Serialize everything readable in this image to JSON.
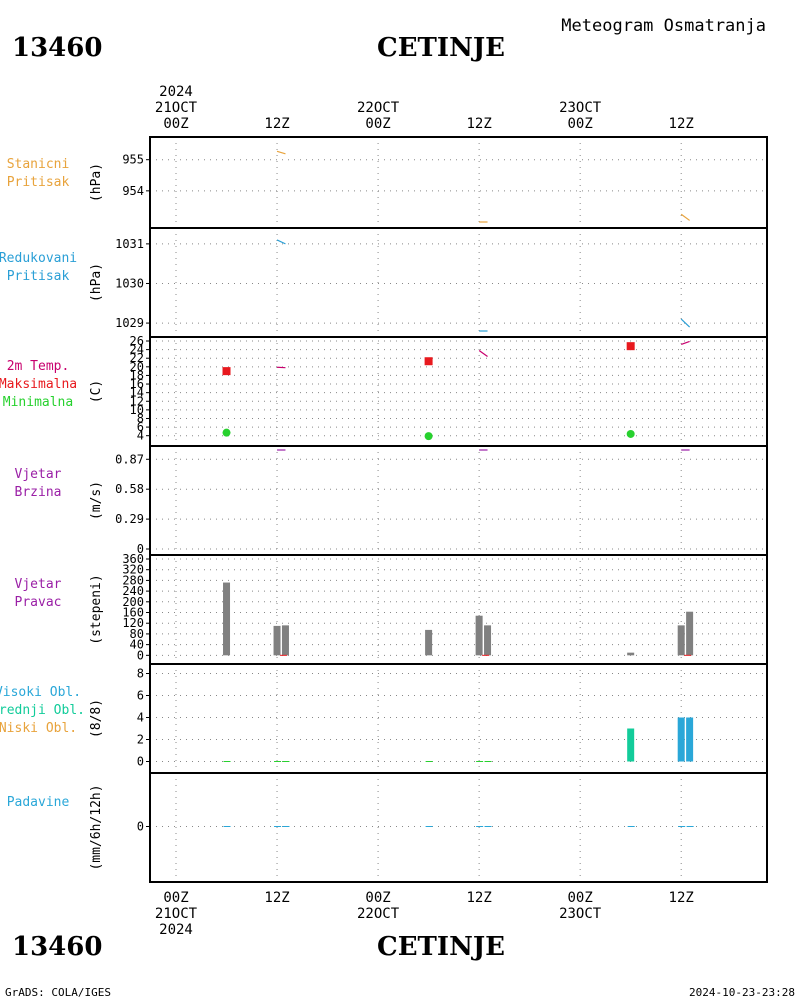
{
  "header": {
    "station_id": "13460",
    "station_name": "CETINJE",
    "product": "Meteogram Osmatranja"
  },
  "footer": {
    "credit": "GrADS: COLA/IGES",
    "timestamp": "2024-10-23-23:28"
  },
  "top_axis": {
    "labels": [
      {
        "lines": [
          "2024",
          "21OCT",
          "00Z"
        ],
        "hour": 0
      },
      {
        "lines": [
          "12Z"
        ],
        "hour": 12
      },
      {
        "lines": [
          "22OCT",
          "00Z"
        ],
        "hour": 24
      },
      {
        "lines": [
          "12Z"
        ],
        "hour": 36
      },
      {
        "lines": [
          "23OCT",
          "00Z"
        ],
        "hour": 48
      },
      {
        "lines": [
          "12Z"
        ],
        "hour": 60
      }
    ]
  },
  "bottom_axis": {
    "labels": [
      {
        "lines": [
          "00Z",
          "21OCT",
          "2024"
        ],
        "hour": 0
      },
      {
        "lines": [
          "12Z"
        ],
        "hour": 12
      },
      {
        "lines": [
          "00Z",
          "22OCT"
        ],
        "hour": 24
      },
      {
        "lines": [
          "12Z"
        ],
        "hour": 36
      },
      {
        "lines": [
          "00Z",
          "23OCT"
        ],
        "hour": 48
      },
      {
        "lines": [
          "12Z"
        ],
        "hour": 60
      }
    ]
  },
  "colors": {
    "stanicni": "#e8a33c",
    "redukovani": "#2a9fd6",
    "temp2m": "#c8006e",
    "maks": "#e8191e",
    "min": "#27d12e",
    "vjetar": "#9a1fa6",
    "bar": "#808080",
    "visoki": "#2aa7d8",
    "srednji": "#12cc9a",
    "niski": "#e8a33c",
    "padavine": "#2aa7d8"
  },
  "chart_data": [
    {
      "id": "stanicni",
      "type": "line",
      "labels": [
        "Stanicni",
        "Pritisak"
      ],
      "ylabel": "(hPa)",
      "ylim": [
        953.0,
        955.6
      ],
      "yticks": [
        954,
        955
      ],
      "segments": [
        {
          "x": [
            12.0,
            13.0
          ],
          "y": [
            955.27,
            955.19
          ]
        },
        {
          "x": [
            36.0,
            37.0
          ],
          "y": [
            953.0,
            953.0
          ]
        },
        {
          "x": [
            60.0,
            61.0
          ],
          "y": [
            953.25,
            953.05
          ]
        }
      ]
    },
    {
      "id": "redukovani",
      "type": "line",
      "labels": [
        "Redukovani",
        "Pritisak"
      ],
      "ylabel": "(hPa)",
      "ylim": [
        1028.8,
        1031.3
      ],
      "yticks": [
        1029,
        1030,
        1031
      ],
      "segments": [
        {
          "x": [
            12.0,
            13.0
          ],
          "y": [
            1031.1,
            1031.0
          ]
        },
        {
          "x": [
            36.0,
            37.0
          ],
          "y": [
            1028.8,
            1028.8
          ]
        },
        {
          "x": [
            60.0,
            61.0
          ],
          "y": [
            1029.1,
            1028.9
          ]
        }
      ]
    },
    {
      "id": "temp",
      "type": "line+scatter",
      "labels": [
        "2m Temp.",
        "Maksimalna",
        "Minimalna"
      ],
      "ylabel": "(C)",
      "ylim": [
        3,
        26
      ],
      "yticks": [
        4,
        6,
        8,
        10,
        12,
        14,
        16,
        18,
        20,
        22,
        24,
        26
      ],
      "segments": [
        {
          "x": [
            12.0,
            13.0
          ],
          "y": [
            19.9,
            19.8
          ]
        },
        {
          "x": [
            36.0,
            37.0
          ],
          "y": [
            23.8,
            22.4
          ]
        },
        {
          "x": [
            60.0,
            61.0
          ],
          "y": [
            25.2,
            25.9
          ]
        }
      ],
      "maks": {
        "x": [
          6,
          30,
          54
        ],
        "y": [
          19.0,
          21.3,
          24.8
        ]
      },
      "min": {
        "x": [
          6,
          30,
          54
        ],
        "y": [
          4.7,
          3.9,
          4.4
        ]
      }
    },
    {
      "id": "brzina",
      "type": "line",
      "labels": [
        "Vjetar",
        "Brzina"
      ],
      "ylabel": "(m/s)",
      "ylim": [
        0,
        0.96
      ],
      "yticks": [
        0,
        0.29,
        0.58,
        0.87
      ],
      "segments": [
        {
          "x": [
            12.0,
            13.0
          ],
          "y": [
            0.96,
            0.96
          ]
        },
        {
          "x": [
            36.0,
            37.0
          ],
          "y": [
            0.96,
            0.96
          ]
        },
        {
          "x": [
            60.0,
            61.0
          ],
          "y": [
            0.96,
            0.96
          ]
        }
      ]
    },
    {
      "id": "pravac",
      "type": "bar",
      "labels": [
        "Vjetar",
        "Pravac"
      ],
      "ylabel": "(stepeni)",
      "ylim": [
        -10,
        360
      ],
      "yticks": [
        0,
        40,
        80,
        120,
        160,
        200,
        240,
        280,
        320,
        360
      ],
      "bars": [
        {
          "x": 6,
          "value": 272
        },
        {
          "x": 12,
          "value": 110
        },
        {
          "x": 13,
          "value": 112
        },
        {
          "x": 30,
          "value": 95
        },
        {
          "x": 36,
          "value": 148
        },
        {
          "x": 37,
          "value": 112
        },
        {
          "x": 54,
          "value": 10
        },
        {
          "x": 60,
          "value": 112
        },
        {
          "x": 61,
          "value": 163
        }
      ]
    },
    {
      "id": "oblacnost",
      "type": "bar",
      "labels": [
        "Visoki Obl.",
        "Srednji Obl.",
        "Niski Obl."
      ],
      "ylabel": "(8/8)",
      "ylim": [
        -0.5,
        8.5
      ],
      "yticks": [
        0,
        2,
        4,
        6,
        8
      ],
      "bars": [
        {
          "x": 54,
          "value": 3,
          "layer": "srednji"
        },
        {
          "x": 60,
          "value": 4,
          "layer": "visoki"
        },
        {
          "x": 61,
          "value": 4,
          "layer": "visoki"
        }
      ],
      "zero_marks": [
        6,
        12,
        13,
        30,
        36,
        37
      ]
    },
    {
      "id": "padavine",
      "type": "bar",
      "labels": [
        "Padavine"
      ],
      "ylabel": "(mm/6h/12h)",
      "ylim": [
        -5,
        5
      ],
      "yticks": [
        0
      ],
      "bars": [],
      "zero_marks": [
        6,
        12,
        13,
        30,
        36,
        37,
        54,
        60,
        61
      ]
    }
  ]
}
